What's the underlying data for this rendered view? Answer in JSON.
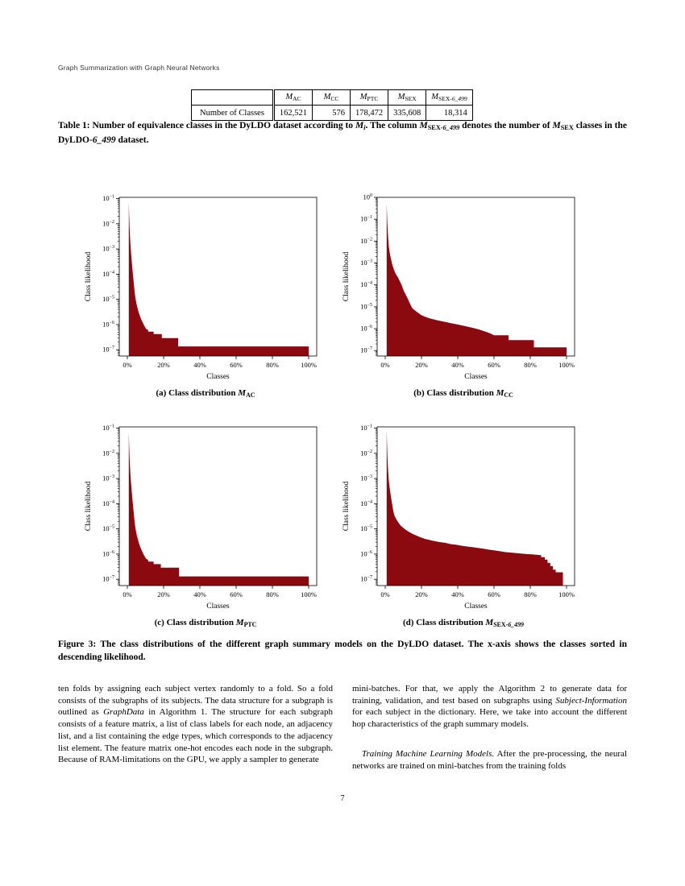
{
  "page": {
    "running_header": "Graph Summarization with Graph Neural Networks",
    "page_number": "7"
  },
  "table": {
    "headers": [
      [
        {
          "t": "M",
          "s": "i"
        },
        {
          "t": "AC",
          "s": "sub"
        }
      ],
      [
        {
          "t": "M",
          "s": "i"
        },
        {
          "t": "CC",
          "s": "sub"
        }
      ],
      [
        {
          "t": "M",
          "s": "i"
        },
        {
          "t": "PTC",
          "s": "sub"
        }
      ],
      [
        {
          "t": "M",
          "s": "i"
        },
        {
          "t": "SEX",
          "s": "sub"
        }
      ],
      [
        {
          "t": "M",
          "s": "i"
        },
        {
          "t": "SEX-",
          "s": "sub"
        },
        {
          "t": "6_499",
          "s": "isub"
        }
      ]
    ],
    "row_label": "Number of Classes",
    "values": [
      "162,521",
      "576",
      "178,472",
      "335,608",
      "18,314"
    ]
  },
  "table_caption": {
    "runs": [
      {
        "t": "Table 1: Number of equivalence classes in the DyLDO dataset according to ",
        "s": "b"
      },
      {
        "t": "M",
        "s": "bi"
      },
      {
        "t": "i",
        "s": "bisub"
      },
      {
        "t": ". The column ",
        "s": "b"
      },
      {
        "t": "M",
        "s": "bi"
      },
      {
        "t": "SEX-",
        "s": "bsub"
      },
      {
        "t": "6_499",
        "s": "bisub"
      },
      {
        "t": " denotes the number of ",
        "s": "b"
      },
      {
        "t": "M",
        "s": "bi"
      },
      {
        "t": "SEX",
        "s": "bsub"
      },
      {
        "t": " classes in the DyLDO-",
        "s": "b"
      },
      {
        "t": "6_499",
        "s": "bi"
      },
      {
        "t": " dataset.",
        "s": "b"
      }
    ]
  },
  "figure_caption": {
    "runs": [
      {
        "t": "Figure 3: The class distributions of the different graph summary models on the DyLDO dataset. The x-axis shows the classes sorted in descending likelihood.",
        "s": "b"
      }
    ]
  },
  "body": {
    "left_col": {
      "p1": [
        {
          "t": "ten folds by assigning each subject vertex randomly to a fold. So a fold consists of the subgraphs of its subjects. The data structure for a subgraph is outlined as "
        },
        {
          "t": "GraphData",
          "s": "i"
        },
        {
          "t": " in Algorithm 1. The structure for each subgraph consists of a feature matrix, a list of class labels for each node, an adjacency list, and a list containing the edge types, which corresponds to the adjacency list element. The feature matrix one-hot encodes each node in the subgraph. Because of RAM-limitations on the GPU, we apply a sampler to generate"
        }
      ]
    },
    "right_col": {
      "p1": [
        {
          "t": "mini-batches. For that, we apply the Algorithm 2 to generate data for training, validation, and test based on subgraphs using "
        },
        {
          "t": "Subject-Information",
          "s": "i"
        },
        {
          "t": " for each subject in the dictionary. Here, we take into account the different hop characteristics of the graph summary models."
        }
      ],
      "p2": [
        {
          "t": "Training Machine Learning Models.",
          "s": "i"
        },
        {
          "t": "  After the pre-processing, the neural networks are trained on mini-batches from the training folds"
        }
      ]
    }
  },
  "chart_style": {
    "fill": "#8b0a10",
    "axis": "#000000"
  },
  "chart_data": [
    {
      "type": "area",
      "caption": [
        {
          "t": "(a) Class distribution ",
          "s": "b"
        },
        {
          "t": "M",
          "s": "bi"
        },
        {
          "t": "AC",
          "s": "bsub"
        }
      ],
      "xlabel": "Classes",
      "ylabel": "Class likelihood",
      "xlim": [
        0,
        100
      ],
      "xticks": [
        0,
        20,
        40,
        60,
        80,
        100
      ],
      "xtick_labels": [
        "0%",
        "20%",
        "40%",
        "60%",
        "80%",
        "100%"
      ],
      "ytick_exponents": [
        -1,
        -2,
        -3,
        -4,
        -5,
        -6,
        -7
      ],
      "ylog_range": [
        -7.25,
        -0.95
      ],
      "points": [
        [
          0.8,
          0.07
        ],
        [
          1.2,
          0.008
        ],
        [
          1.6,
          0.002
        ],
        [
          2,
          0.00075
        ],
        [
          2.4,
          0.00035
        ],
        [
          2.8,
          0.00016
        ],
        [
          3.2,
          8e-05
        ],
        [
          3.6,
          4e-05
        ],
        [
          4,
          2e-05
        ],
        [
          4.5,
          1.1e-05
        ],
        [
          5,
          6.8e-06
        ],
        [
          5.5,
          4.8e-06
        ],
        [
          6,
          3.5e-06
        ],
        [
          6.5,
          2.7e-06
        ],
        [
          7,
          2.1e-06
        ],
        [
          7.5,
          1.7e-06
        ],
        [
          8,
          1.4e-06
        ],
        [
          9,
          1e-06
        ],
        [
          10,
          7.4e-07
        ],
        [
          10.5,
          6.6e-07
        ],
        [
          11.5,
          6e-07
        ],
        [
          11.5,
          5.2e-07
        ],
        [
          14.5,
          5.2e-07
        ],
        [
          14.5,
          4.2e-07
        ],
        [
          19,
          4.2e-07
        ],
        [
          19,
          2.9e-07
        ],
        [
          28,
          2.9e-07
        ],
        [
          28,
          1.35e-07
        ],
        [
          100,
          1.35e-07
        ]
      ]
    },
    {
      "type": "area",
      "caption": [
        {
          "t": "(b) Class distribution ",
          "s": "b"
        },
        {
          "t": "M",
          "s": "bi"
        },
        {
          "t": "CC",
          "s": "bsub"
        }
      ],
      "xlabel": "Classes",
      "ylabel": "Class likelihood",
      "xlim": [
        0,
        100
      ],
      "xticks": [
        0,
        20,
        40,
        60,
        80,
        100
      ],
      "xtick_labels": [
        "0%",
        "20%",
        "40%",
        "60%",
        "80%",
        "100%"
      ],
      "ytick_exponents": [
        0,
        -1,
        -2,
        -3,
        -4,
        -5,
        -6,
        -7
      ],
      "ylog_range": [
        -7.25,
        0
      ],
      "points": [
        [
          0.8,
          0.5
        ],
        [
          1.2,
          0.06
        ],
        [
          1.6,
          0.015
        ],
        [
          2,
          0.0055
        ],
        [
          2.4,
          0.0032
        ],
        [
          2.8,
          0.0021
        ],
        [
          3.2,
          0.0015
        ],
        [
          3.6,
          0.0011
        ],
        [
          4,
          0.0008
        ],
        [
          4.5,
          0.00058
        ],
        [
          5,
          0.00045
        ],
        [
          5.5,
          0.00036
        ],
        [
          6,
          0.0003
        ],
        [
          6.5,
          0.000255
        ],
        [
          7,
          0.00022
        ],
        [
          7.5,
          0.00018
        ],
        [
          8,
          0.00015
        ],
        [
          8.5,
          0.000125
        ],
        [
          9,
          0.0001
        ],
        [
          9.5,
          7.8e-05
        ],
        [
          10,
          6e-05
        ],
        [
          10.5,
          4.8e-05
        ],
        [
          11,
          4e-05
        ],
        [
          11.5,
          3.3e-05
        ],
        [
          12,
          2.8e-05
        ],
        [
          13,
          1.8e-05
        ],
        [
          14,
          1.2e-05
        ],
        [
          15,
          8.5e-06
        ],
        [
          16,
          7.2e-06
        ],
        [
          17,
          6.2e-06
        ],
        [
          18,
          5.4e-06
        ],
        [
          19,
          4.7e-06
        ],
        [
          20,
          4.1e-06
        ],
        [
          22,
          3.5e-06
        ],
        [
          24,
          3.05e-06
        ],
        [
          26,
          2.75e-06
        ],
        [
          28,
          2.5e-06
        ],
        [
          30,
          2.3e-06
        ],
        [
          33,
          2.05e-06
        ],
        [
          36,
          1.8e-06
        ],
        [
          40,
          1.55e-06
        ],
        [
          44,
          1.3e-06
        ],
        [
          48,
          1.1e-06
        ],
        [
          50,
          1e-06
        ],
        [
          52,
          9e-07
        ],
        [
          54,
          8e-07
        ],
        [
          55.5,
          7.2e-07
        ],
        [
          57,
          6.5e-07
        ],
        [
          58.5,
          5.8e-07
        ],
        [
          60,
          5e-07
        ],
        [
          68,
          5e-07
        ],
        [
          68,
          3e-07
        ],
        [
          82,
          3e-07
        ],
        [
          82,
          1.4e-07
        ],
        [
          100,
          1.4e-07
        ]
      ]
    },
    {
      "type": "area",
      "caption": [
        {
          "t": "(c) Class distribution ",
          "s": "b"
        },
        {
          "t": "M",
          "s": "bi"
        },
        {
          "t": "PTC",
          "s": "bsub"
        }
      ],
      "xlabel": "Classes",
      "ylabel": "Class likelihood",
      "xlim": [
        0,
        100
      ],
      "xticks": [
        0,
        20,
        40,
        60,
        80,
        100
      ],
      "xtick_labels": [
        "0%",
        "20%",
        "40%",
        "60%",
        "80%",
        "100%"
      ],
      "ytick_exponents": [
        -1,
        -2,
        -3,
        -4,
        -5,
        -6,
        -7
      ],
      "ylog_range": [
        -7.25,
        -0.95
      ],
      "points": [
        [
          0.8,
          0.065
        ],
        [
          1.2,
          0.0075
        ],
        [
          1.6,
          0.0019
        ],
        [
          2,
          0.0007
        ],
        [
          2.4,
          0.00033
        ],
        [
          2.8,
          0.00015
        ],
        [
          3.2,
          7.5e-05
        ],
        [
          3.6,
          3.8e-05
        ],
        [
          4,
          1.9e-05
        ],
        [
          4.5,
          1.05e-05
        ],
        [
          5,
          6.5e-06
        ],
        [
          5.5,
          4.6e-06
        ],
        [
          6,
          3.4e-06
        ],
        [
          6.5,
          2.6e-06
        ],
        [
          7,
          2e-06
        ],
        [
          7.5,
          1.65e-06
        ],
        [
          8,
          1.35e-06
        ],
        [
          9,
          9.5e-07
        ],
        [
          10,
          7.2e-07
        ],
        [
          10.5,
          6.4e-07
        ],
        [
          11.5,
          5.8e-07
        ],
        [
          11.5,
          5e-07
        ],
        [
          14.5,
          5e-07
        ],
        [
          14.5,
          4e-07
        ],
        [
          18.5,
          4e-07
        ],
        [
          18.5,
          2.9e-07
        ],
        [
          28.5,
          2.9e-07
        ],
        [
          28.5,
          1.3e-07
        ],
        [
          100,
          1.3e-07
        ]
      ]
    },
    {
      "type": "area",
      "caption": [
        {
          "t": "(d) Class distribution ",
          "s": "b"
        },
        {
          "t": "M",
          "s": "bi"
        },
        {
          "t": "SEX-",
          "s": "bsub"
        },
        {
          "t": "6_499",
          "s": "bisub"
        }
      ],
      "xlabel": "Classes",
      "ylabel": "Class likelihood",
      "xlim": [
        0,
        100
      ],
      "xticks": [
        0,
        20,
        40,
        60,
        80,
        100
      ],
      "xtick_labels": [
        "0%",
        "20%",
        "40%",
        "60%",
        "80%",
        "100%"
      ],
      "ytick_exponents": [
        -1,
        -2,
        -3,
        -4,
        -5,
        -6,
        -7
      ],
      "ylog_range": [
        -7.25,
        -0.95
      ],
      "points": [
        [
          0.8,
          0.08
        ],
        [
          1.2,
          0.008
        ],
        [
          1.6,
          0.002
        ],
        [
          2,
          0.0008
        ],
        [
          2.5,
          0.0004
        ],
        [
          3,
          0.00022
        ],
        [
          3.5,
          0.00013
        ],
        [
          4,
          8e-05
        ],
        [
          4.5,
          5e-05
        ],
        [
          5,
          3.5e-05
        ],
        [
          6,
          2.5e-05
        ],
        [
          7,
          1.9e-05
        ],
        [
          8,
          1.5e-05
        ],
        [
          9,
          1.25e-05
        ],
        [
          10,
          1.1e-05
        ],
        [
          11,
          9.5e-06
        ],
        [
          12,
          8.5e-06
        ],
        [
          13,
          7.7e-06
        ],
        [
          14,
          7e-06
        ],
        [
          15,
          6.4e-06
        ],
        [
          16,
          5.9e-06
        ],
        [
          17,
          5.5e-06
        ],
        [
          18,
          5.1e-06
        ],
        [
          19,
          4.8e-06
        ],
        [
          20,
          4.5e-06
        ],
        [
          22,
          4e-06
        ],
        [
          24,
          3.7e-06
        ],
        [
          26,
          3.4e-06
        ],
        [
          28,
          3.2e-06
        ],
        [
          30,
          3e-06
        ],
        [
          33,
          2.8e-06
        ],
        [
          36,
          2.5e-06
        ],
        [
          39,
          2.35e-06
        ],
        [
          42,
          2.15e-06
        ],
        [
          45,
          2e-06
        ],
        [
          48,
          1.9e-06
        ],
        [
          51,
          1.75e-06
        ],
        [
          54,
          1.65e-06
        ],
        [
          57,
          1.5e-06
        ],
        [
          60,
          1.4e-06
        ],
        [
          63,
          1.3e-06
        ],
        [
          66,
          1.2e-06
        ],
        [
          69,
          1.15e-06
        ],
        [
          72,
          1.1e-06
        ],
        [
          75,
          1.05e-06
        ],
        [
          78,
          1e-06
        ],
        [
          81,
          9.7e-07
        ],
        [
          84,
          9.3e-07
        ],
        [
          86,
          9e-07
        ],
        [
          86,
          7.5e-07
        ],
        [
          88,
          7.5e-07
        ],
        [
          88,
          6e-07
        ],
        [
          89.5,
          6e-07
        ],
        [
          89.5,
          4.5e-07
        ],
        [
          91,
          4.5e-07
        ],
        [
          91,
          3.3e-07
        ],
        [
          92.5,
          3.3e-07
        ],
        [
          92.5,
          2.4e-07
        ],
        [
          94,
          2.4e-07
        ],
        [
          94,
          1.9e-07
        ],
        [
          98,
          1.9e-07
        ]
      ]
    }
  ]
}
